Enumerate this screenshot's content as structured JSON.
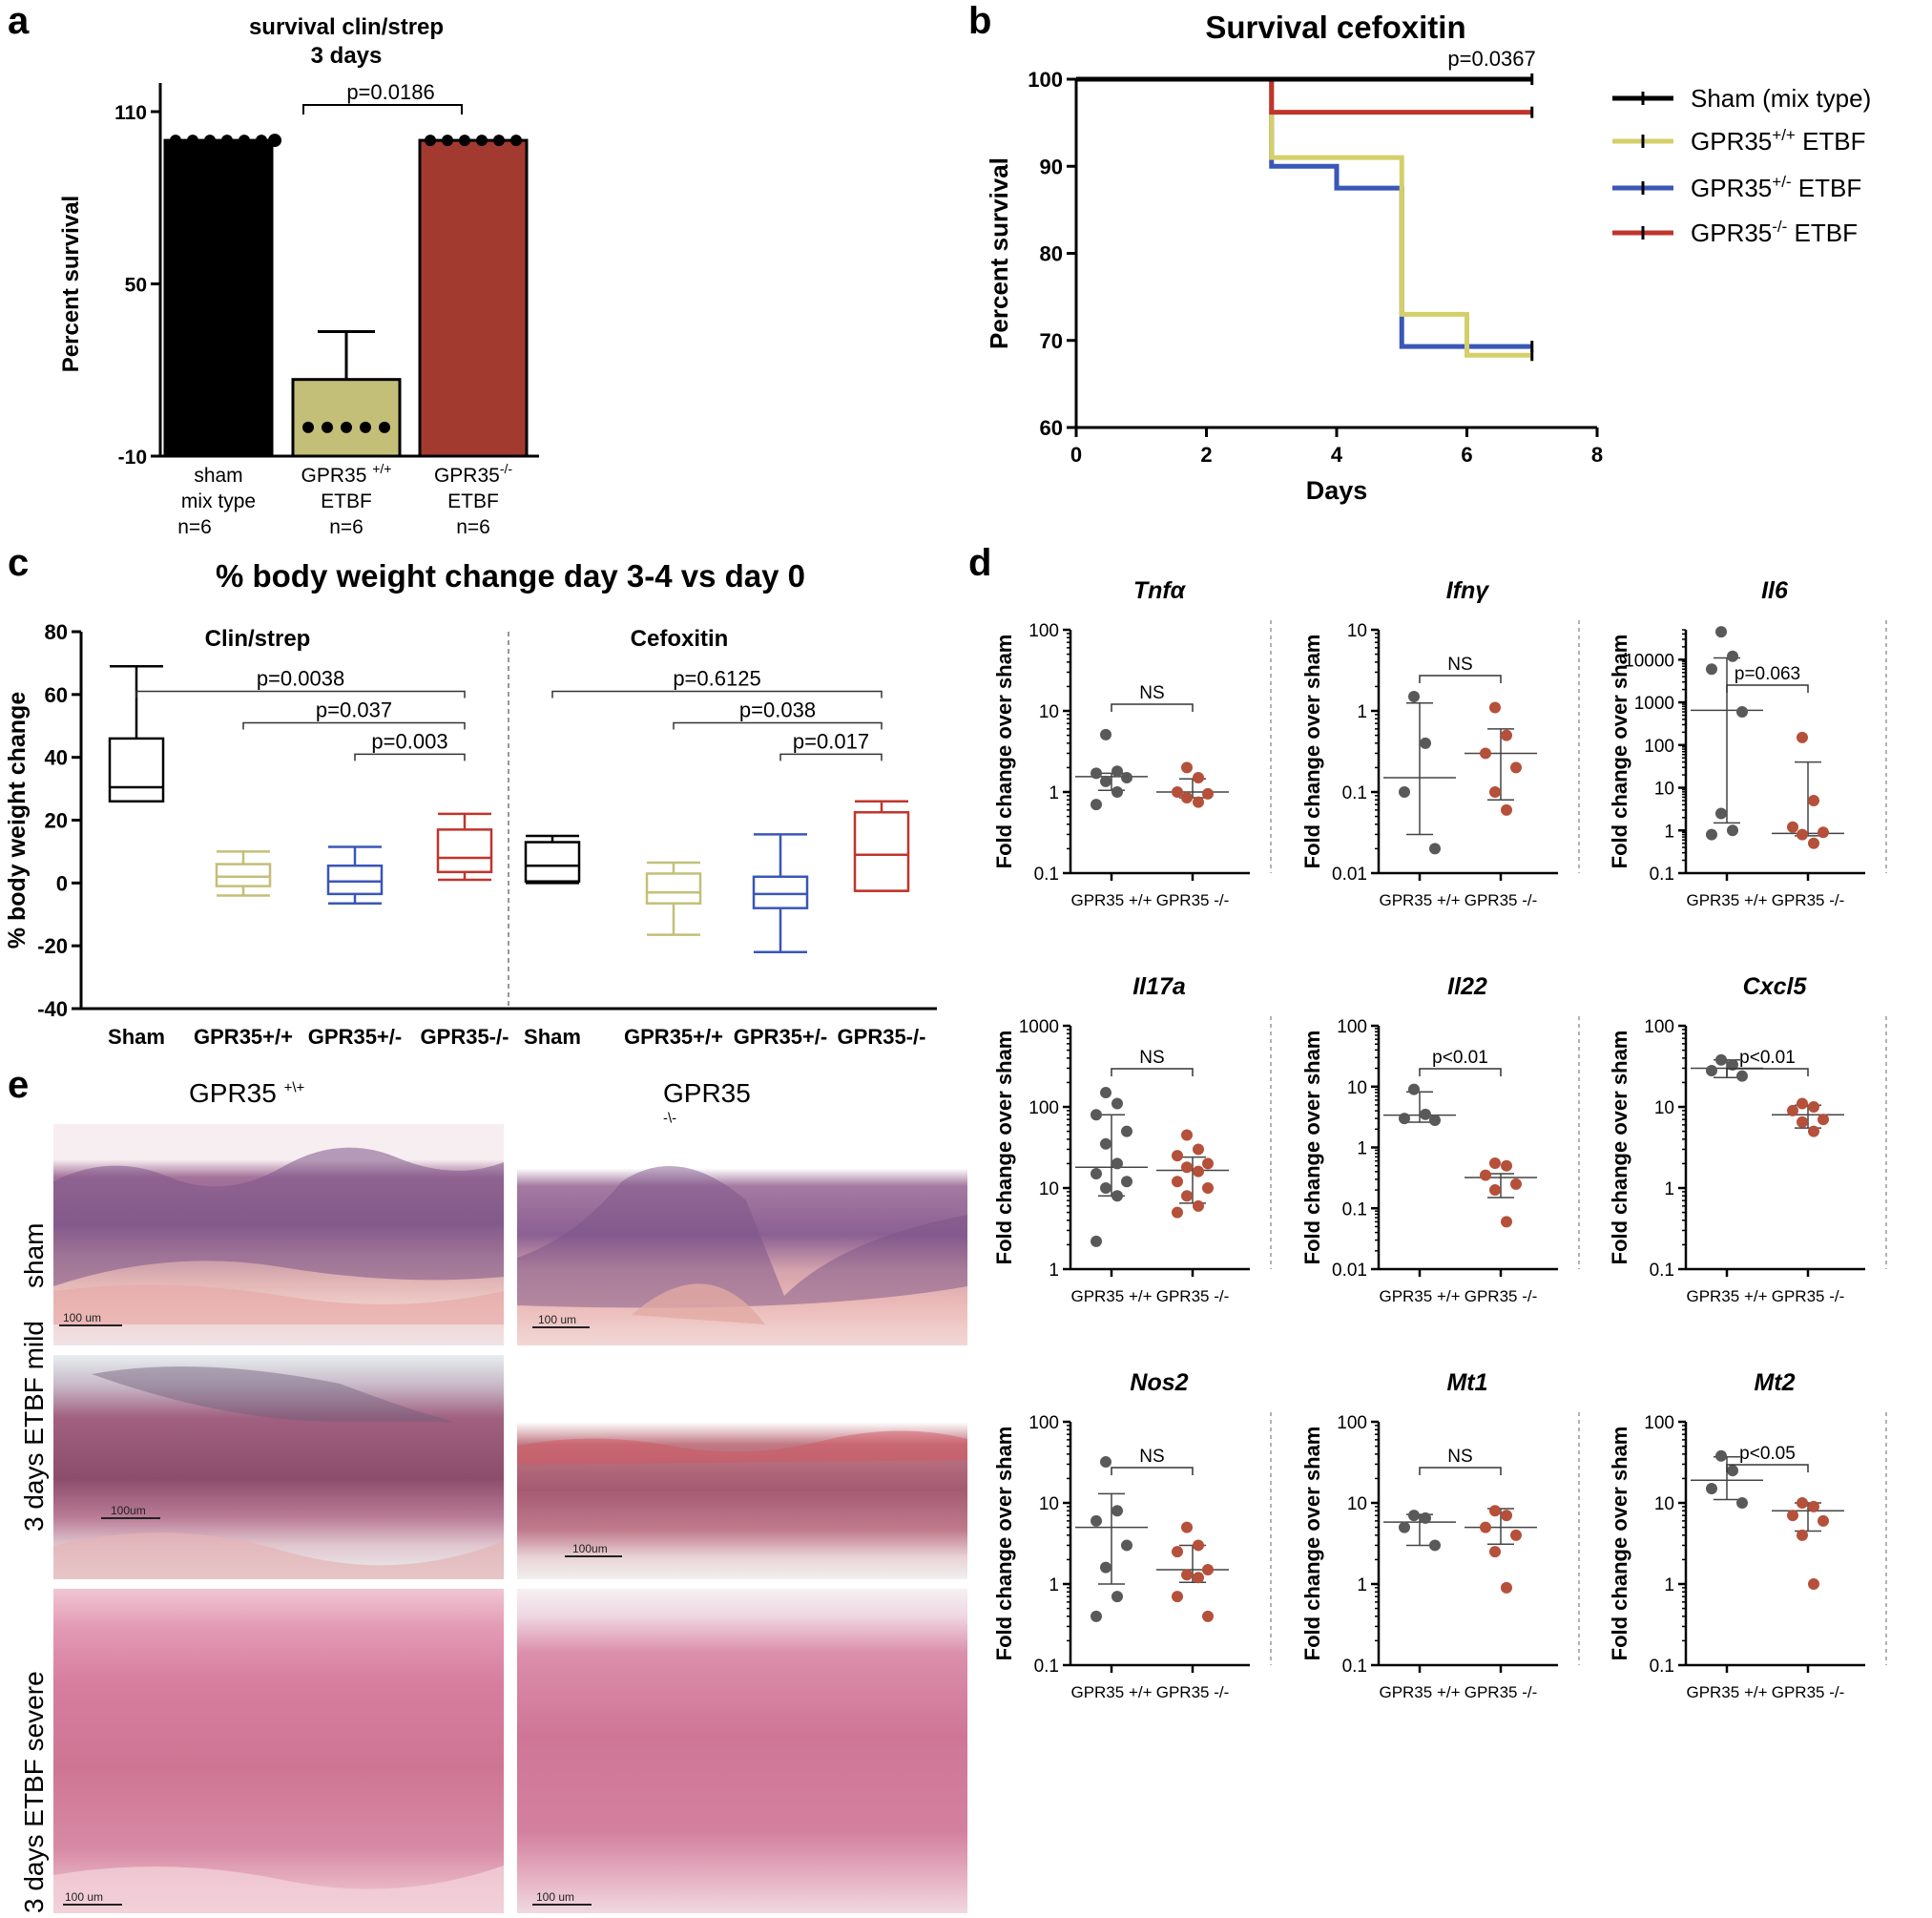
{
  "panel_labels": {
    "a": "a",
    "b": "b",
    "c": "c",
    "d": "d",
    "e": "e"
  },
  "colors": {
    "black": "#000000",
    "olive": "#c3bf78",
    "olive_line": "#d4cf6a",
    "blue": "#3a56b7",
    "red": "#c0352b",
    "redbar": "#a33a2f",
    "grey_dot": "#595959",
    "orange_dot": "#b5503a"
  },
  "chart_data": [
    {
      "id": "a",
      "type": "bar",
      "title": "survival clin/strep",
      "subtitle": "3 days",
      "ylabel": "Percent survival",
      "ylim": [
        -10,
        110
      ],
      "yticks": [
        "110",
        "50",
        "-10"
      ],
      "category_lines": [
        [
          "sham",
          "mix type",
          "n=6"
        ],
        [
          "GPR35 +/+",
          "ETBF",
          "n=6"
        ],
        [
          "GPR35-/-",
          "ETBF",
          "n=6"
        ]
      ],
      "values": [
        100,
        16.7,
        100
      ],
      "error_upper": [
        100,
        33.3,
        100
      ],
      "points": [
        [
          100,
          100,
          100,
          100,
          100,
          100
        ],
        [
          0,
          0,
          0,
          0,
          0,
          100
        ],
        [
          100,
          100,
          100,
          100,
          100,
          100
        ]
      ],
      "comparisons": [
        {
          "from": 1,
          "to": 2,
          "label": "p=0.0186"
        }
      ]
    },
    {
      "id": "b",
      "type": "line",
      "title": "Survival cefoxitin",
      "xlabel": "Days",
      "ylabel": "Percent survival",
      "xlim": [
        0,
        8
      ],
      "ylim": [
        60,
        100
      ],
      "xticks": [
        "0",
        "2",
        "4",
        "6",
        "8"
      ],
      "yticks": [
        "100",
        "90",
        "80",
        "70",
        "60"
      ],
      "annotation": "p=0.0367",
      "series": [
        {
          "name": "Sham (mix type)",
          "legend_base": "Sham (mix type)",
          "legend_sup": "",
          "legend_tail": "",
          "color": "#000000",
          "steps": [
            [
              0,
              100
            ],
            [
              7,
              100
            ]
          ]
        },
        {
          "name": "GPR35+/+ ETBF",
          "legend_base": "GPR35",
          "legend_sup": "+/+",
          "legend_tail": " ETBF",
          "color": "#d4cf6a",
          "steps": [
            [
              0,
              100
            ],
            [
              3,
              100
            ],
            [
              3,
              91
            ],
            [
              5,
              91
            ],
            [
              5,
              73
            ],
            [
              6,
              73
            ],
            [
              6,
              68.3
            ],
            [
              7,
              68.3
            ]
          ]
        },
        {
          "name": "GPR35+/- ETBF",
          "legend_base": "GPR35",
          "legend_sup": "+/-",
          "legend_tail": " ETBF",
          "color": "#3a56b7",
          "steps": [
            [
              0,
              100
            ],
            [
              3,
              100
            ],
            [
              3,
              90
            ],
            [
              4,
              90
            ],
            [
              4,
              87.5
            ],
            [
              5,
              87.5
            ],
            [
              5,
              69.3
            ],
            [
              7,
              69.3
            ]
          ]
        },
        {
          "name": "GPR35-/- ETBF",
          "legend_base": "GPR35",
          "legend_sup": "-/-",
          "legend_tail": " ETBF",
          "color": "#c0352b",
          "steps": [
            [
              0,
              100
            ],
            [
              3,
              100
            ],
            [
              3,
              96.2
            ],
            [
              7,
              96.2
            ]
          ]
        }
      ]
    },
    {
      "id": "c",
      "type": "box",
      "title": "% body weight change day 3-4 vs day 0",
      "ylabel": "% body weight change",
      "ylim": [
        -40,
        80
      ],
      "yticks": [
        "80",
        "60",
        "40",
        "20",
        "0",
        "-20",
        "-40"
      ],
      "groups": [
        {
          "name": "Clin/strep",
          "categories": [
            "Sham",
            "GPR35+/+",
            "GPR35+/-",
            "GPR35-/-"
          ],
          "boxes": [
            {
              "min": 26,
              "q1": 26,
              "median": 30.5,
              "q3": 46,
              "max": 69,
              "color": "#000000"
            },
            {
              "min": -4,
              "q1": -1,
              "median": 2,
              "q3": 6,
              "max": 10,
              "color": "#c3bf78"
            },
            {
              "min": -6.5,
              "q1": -3.5,
              "median": 0.5,
              "q3": 5.5,
              "max": 11.5,
              "color": "#3a56b7"
            },
            {
              "min": 1,
              "q1": 3.5,
              "median": 8,
              "q3": 17,
              "max": 22,
              "color": "#c0352b"
            }
          ],
          "comparisons": [
            {
              "from": 0,
              "to": 3,
              "label": "p=0.0038",
              "y": 61
            },
            {
              "from": 1,
              "to": 3,
              "label": "p=0.037",
              "y": 51
            },
            {
              "from": 2,
              "to": 3,
              "label": "p=0.003",
              "y": 41
            }
          ]
        },
        {
          "name": "Cefoxitin",
          "categories": [
            "Sham",
            "GPR35+/+",
            "GPR35+/-",
            "GPR35-/-"
          ],
          "boxes": [
            {
              "min": 0,
              "q1": 0.5,
              "median": 5.5,
              "q3": 13,
              "max": 15,
              "color": "#000000"
            },
            {
              "min": -16.5,
              "q1": -6.5,
              "median": -3,
              "q3": 3,
              "max": 6.5,
              "color": "#c3bf78"
            },
            {
              "min": -22,
              "q1": -8,
              "median": -3.5,
              "q3": 2,
              "max": 15.5,
              "color": "#3a56b7"
            },
            {
              "min": -2.5,
              "q1": -2.5,
              "median": 9,
              "q3": 22.5,
              "max": 26,
              "color": "#c0352b"
            }
          ],
          "comparisons": [
            {
              "from": 0,
              "to": 3,
              "label": "p=0.6125",
              "y": 61
            },
            {
              "from": 1,
              "to": 3,
              "label": "p=0.038",
              "y": 51
            },
            {
              "from": 2,
              "to": 3,
              "label": "p=0.017",
              "y": 41
            }
          ]
        }
      ]
    },
    {
      "id": "d",
      "type": "scatter",
      "ylabel": "Fold change over sham",
      "categories": [
        "GPR35 +/+",
        "GPR35 -/-"
      ],
      "panels": [
        {
          "gene": "Tnfα",
          "ylim_log10": [
            -1,
            2
          ],
          "yticks": [
            "100",
            "10",
            "1",
            "0.1"
          ],
          "sig": "NS",
          "wt": [
            5.1,
            1.8,
            1.7,
            1.5,
            1.35,
            1.0,
            0.7
          ],
          "ko": [
            2.0,
            1.5,
            1.0,
            0.95,
            0.85,
            0.75
          ],
          "wt_stats": [
            1.05,
            1.55,
            1.7
          ],
          "ko_stats": [
            0.85,
            1.0,
            1.45
          ]
        },
        {
          "gene": "Ifnγ",
          "ylim_log10": [
            -2,
            1
          ],
          "yticks": [
            "10",
            "1",
            "0.1",
            "0.01"
          ],
          "sig": "NS",
          "wt": [
            1.5,
            0.4,
            0.1,
            0.02
          ],
          "ko": [
            1.1,
            0.5,
            0.3,
            0.2,
            0.1,
            0.06
          ],
          "wt_stats": [
            0.03,
            0.15,
            1.25
          ],
          "ko_stats": [
            0.08,
            0.3,
            0.6
          ]
        },
        {
          "gene": "Il6",
          "ylim_log10": [
            -1,
            4.7
          ],
          "yticks": [
            "10000",
            "1000",
            "100",
            "10",
            "1",
            "0.1"
          ],
          "sig": "p=0.063",
          "wt": [
            45000,
            12000,
            6000,
            600,
            2.5,
            1.0,
            0.8
          ],
          "ko": [
            150,
            5,
            1.2,
            0.9,
            0.8,
            0.5
          ],
          "wt_stats": [
            1.5,
            650,
            11000
          ],
          "ko_stats": [
            0.75,
            0.85,
            40
          ]
        },
        {
          "gene": "Il17a",
          "ylim_log10": [
            0,
            3
          ],
          "yticks": [
            "1000",
            "100",
            "10",
            "1"
          ],
          "sig": "NS",
          "wt": [
            150,
            110,
            80,
            50,
            35,
            20,
            15,
            12,
            10,
            8,
            2.2
          ],
          "ko": [
            45,
            30,
            25,
            20,
            18,
            16,
            12,
            10,
            8,
            6,
            5
          ],
          "wt_stats": [
            8,
            18,
            80
          ],
          "ko_stats": [
            6.5,
            16.5,
            24
          ]
        },
        {
          "gene": "Il22",
          "ylim_log10": [
            -2,
            2
          ],
          "yticks": [
            "100",
            "10",
            "1",
            "0.1",
            "0.01"
          ],
          "sig": "p<0.01",
          "wt": [
            9,
            3.5,
            3,
            2.8
          ],
          "ko": [
            0.55,
            0.5,
            0.35,
            0.25,
            0.2,
            0.06
          ],
          "wt_stats": [
            2.6,
            3.4,
            8.2
          ],
          "ko_stats": [
            0.15,
            0.32,
            0.37
          ]
        },
        {
          "gene": "Cxcl5",
          "ylim_log10": [
            -1,
            2
          ],
          "yticks": [
            "100",
            "10",
            "1",
            "0.1"
          ],
          "sig": "p<0.01",
          "wt": [
            38,
            33,
            28,
            24
          ],
          "ko": [
            11,
            10,
            9,
            7,
            6.5,
            5
          ],
          "wt_stats": [
            23,
            30,
            38
          ],
          "ko_stats": [
            5.5,
            8,
            10.5
          ]
        },
        {
          "gene": "Nos2",
          "ylim_log10": [
            -1,
            2
          ],
          "yticks": [
            "100",
            "10",
            "1",
            "0.1"
          ],
          "sig": "NS",
          "wt": [
            32,
            8,
            6,
            3,
            1.6,
            0.7,
            0.4
          ],
          "ko": [
            5,
            3,
            2.5,
            1.5,
            1.3,
            1.2,
            0.7,
            0.4
          ],
          "wt_stats": [
            1.0,
            5,
            13
          ],
          "ko_stats": [
            1.05,
            1.5,
            3.0
          ]
        },
        {
          "gene": "Mt1",
          "ylim_log10": [
            -1,
            2
          ],
          "yticks": [
            "100",
            "10",
            "1",
            "0.1"
          ],
          "sig": "NS",
          "wt": [
            7,
            6.5,
            5,
            3
          ],
          "ko": [
            8,
            7,
            5,
            4,
            2.5,
            0.9
          ],
          "wt_stats": [
            3,
            5.8,
            7.2
          ],
          "ko_stats": [
            3.1,
            5,
            8.5
          ]
        },
        {
          "gene": "Mt2",
          "ylim_log10": [
            -1,
            2
          ],
          "yticks": [
            "100",
            "10",
            "1",
            "0.1"
          ],
          "sig": "p<0.05",
          "wt": [
            38,
            25,
            15,
            10
          ],
          "ko": [
            10,
            9,
            7,
            6,
            4,
            1
          ],
          "wt_stats": [
            11,
            19,
            37
          ],
          "ko_stats": [
            4.5,
            8,
            10
          ]
        }
      ]
    }
  ],
  "panel_e": {
    "columns": [
      "GPR35 ",
      "+\\+",
      "GPR35 ",
      "-\\-"
    ],
    "col_base": [
      "GPR35",
      "GPR35"
    ],
    "col_sup": [
      "+\\+",
      "-\\-"
    ],
    "rows": [
      "sham",
      "3 days ETBF mild",
      "3 days ETBF severe"
    ],
    "scale_labels": [
      "100 um",
      "100 um",
      "100um",
      "100um",
      "100 um",
      "100 um"
    ]
  }
}
